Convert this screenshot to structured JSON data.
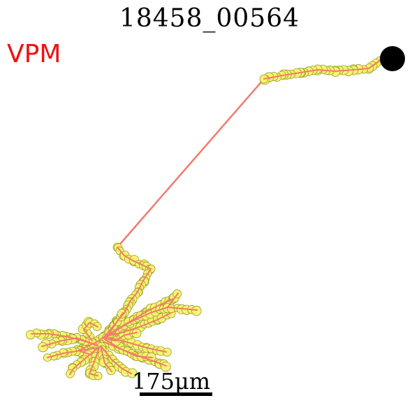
{
  "figure": {
    "title": "18458_00564",
    "region": "VPM",
    "scale_label": "175μm",
    "colors": {
      "branch": "#f47a6c",
      "node_fill": "#f6f36e",
      "node_stroke": "#9c9a2c",
      "soma": "#000000",
      "region_label": "#ee1111"
    }
  }
}
